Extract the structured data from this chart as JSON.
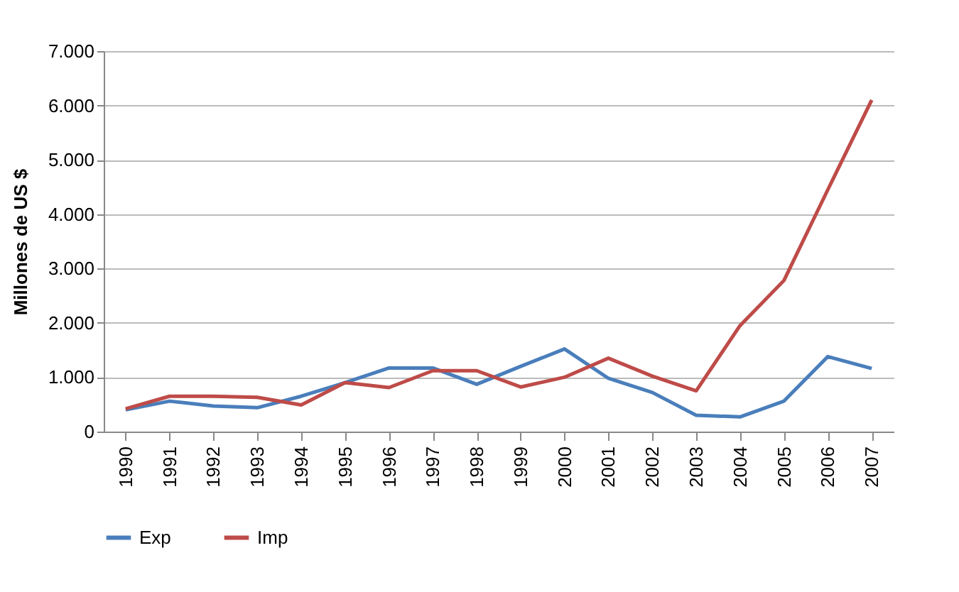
{
  "chart_data": {
    "type": "line",
    "ylabel": "Millones de US $",
    "categories": [
      "1990",
      "1991",
      "1992",
      "1993",
      "1994",
      "1995",
      "1996",
      "1997",
      "1998",
      "1999",
      "2000",
      "2001",
      "2002",
      "2003",
      "2004",
      "2005",
      "2006",
      "2007"
    ],
    "series": [
      {
        "name": "Exp",
        "color": "#4a7ebb",
        "values": [
          400,
          560,
          470,
          440,
          650,
          900,
          1170,
          1170,
          870,
          1200,
          1520,
          980,
          720,
          300,
          270,
          560,
          1380,
          1160
        ]
      },
      {
        "name": "Imp",
        "color": "#be4b48",
        "values": [
          420,
          650,
          650,
          630,
          490,
          900,
          810,
          1120,
          1120,
          820,
          1000,
          1350,
          1020,
          750,
          1950,
          2780,
          4450,
          6100
        ]
      }
    ],
    "ylim": [
      0,
      7000
    ],
    "yticks": [
      0,
      {
        "value": 1000,
        "label": "1.000"
      },
      {
        "value": 2000,
        "label": "2.000"
      },
      {
        "value": 3000,
        "label": "3.000"
      },
      {
        "value": 4000,
        "label": "4.000"
      },
      {
        "value": 5000,
        "label": "5.000"
      },
      {
        "value": 6000,
        "label": "6.000"
      },
      {
        "value": 7000,
        "label": "7.000"
      }
    ],
    "grid": "y",
    "legend": "bottom",
    "marker": "none",
    "line_style": "solid"
  }
}
